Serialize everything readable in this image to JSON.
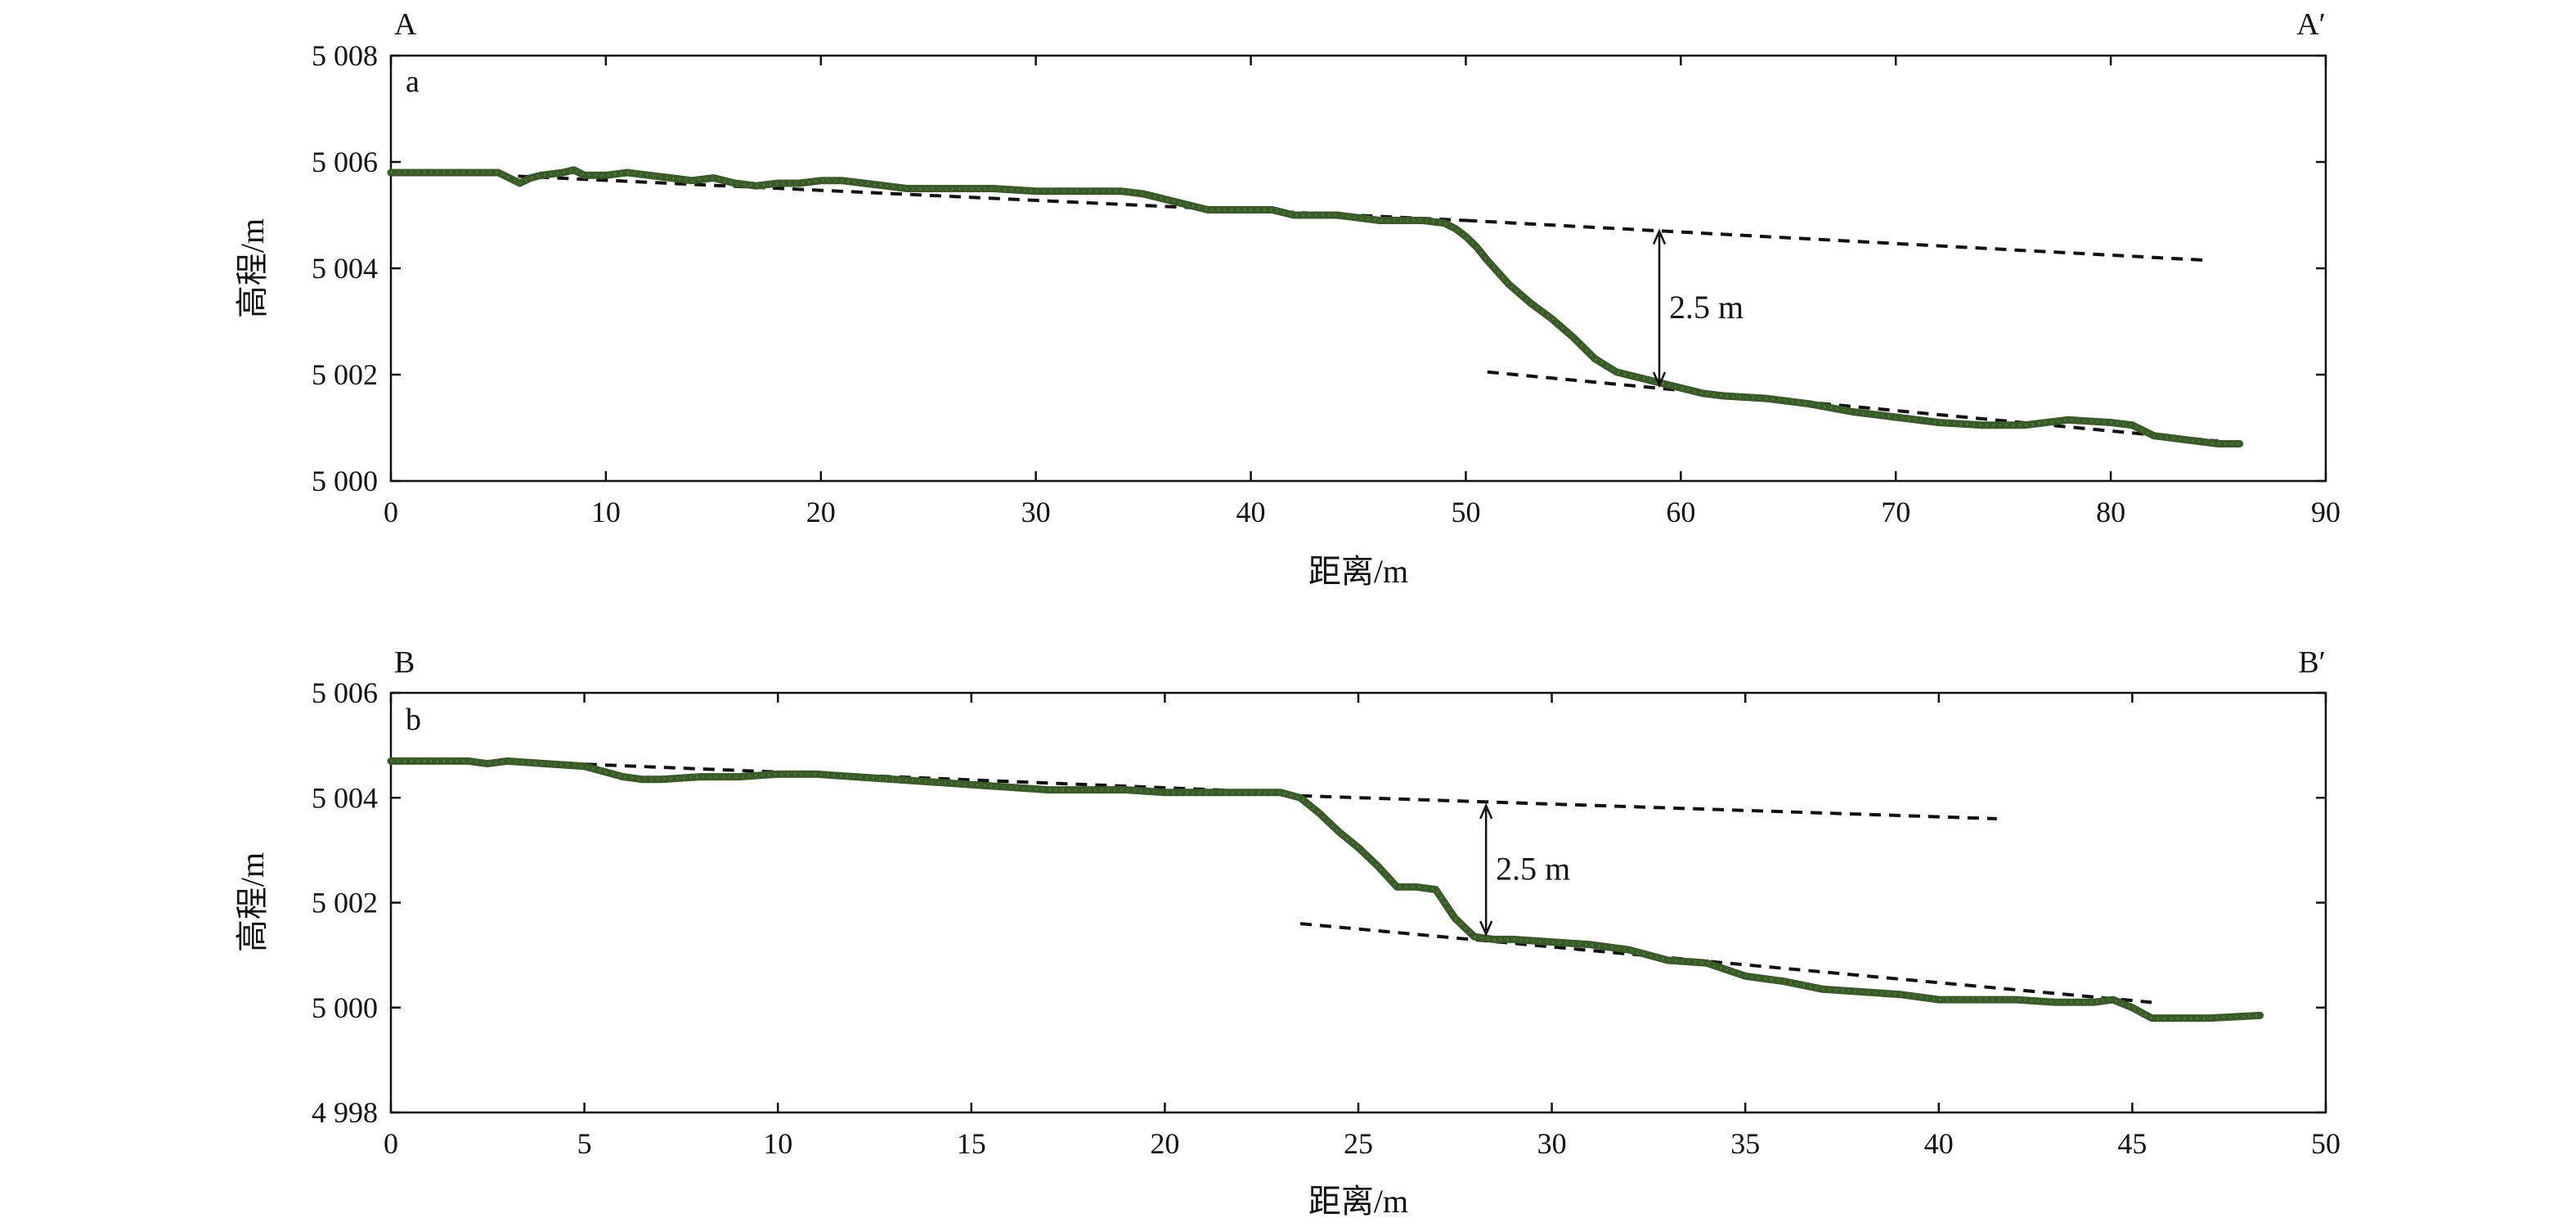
{
  "chart_data": [
    {
      "type": "line",
      "panel": "a",
      "corner_left": "A",
      "corner_right": "A′",
      "xlabel": "距离/m",
      "ylabel": "高程/m",
      "xlim": [
        0,
        90
      ],
      "ylim": [
        5000,
        5008
      ],
      "xticks": [
        0,
        10,
        20,
        30,
        40,
        50,
        60,
        70,
        80,
        90
      ],
      "yticks": [
        5000,
        5002,
        5004,
        5006,
        5008
      ],
      "ytick_labels": [
        "5 000",
        "5 002",
        "5 004",
        "5 006",
        "5 008"
      ],
      "series": [
        {
          "color": "#3a5a2a",
          "x": [
            0,
            2,
            4,
            5,
            5.5,
            6,
            6.5,
            7,
            8,
            8.5,
            9,
            10,
            11,
            12,
            13,
            14,
            15,
            16,
            17,
            18,
            19,
            20,
            21,
            22,
            23,
            24,
            25,
            26,
            28,
            30,
            32,
            34,
            35,
            36,
            37,
            38,
            40,
            41,
            42,
            44,
            46,
            48,
            49,
            49.5,
            50,
            50.5,
            51,
            52,
            53,
            54,
            55,
            56,
            57,
            58,
            59,
            60,
            61,
            62,
            64,
            66,
            68,
            70,
            72,
            74,
            76,
            77,
            78,
            80,
            81,
            82,
            84,
            85,
            86
          ],
          "y": [
            5005.8,
            5005.8,
            5005.8,
            5005.8,
            5005.7,
            5005.6,
            5005.7,
            5005.75,
            5005.8,
            5005.85,
            5005.75,
            5005.75,
            5005.8,
            5005.75,
            5005.7,
            5005.65,
            5005.7,
            5005.6,
            5005.55,
            5005.6,
            5005.6,
            5005.65,
            5005.65,
            5005.6,
            5005.55,
            5005.5,
            5005.5,
            5005.5,
            5005.5,
            5005.45,
            5005.45,
            5005.45,
            5005.4,
            5005.3,
            5005.2,
            5005.1,
            5005.1,
            5005.1,
            5005.0,
            5005.0,
            5004.9,
            5004.9,
            5004.85,
            5004.75,
            5004.6,
            5004.4,
            5004.15,
            5003.7,
            5003.35,
            5003.05,
            5002.7,
            5002.3,
            5002.05,
            5001.95,
            5001.85,
            5001.75,
            5001.65,
            5001.6,
            5001.55,
            5001.45,
            5001.3,
            5001.2,
            5001.1,
            5001.05,
            5001.05,
            5001.1,
            5001.15,
            5001.1,
            5001.05,
            5000.85,
            5000.75,
            5000.7,
            5000.7
          ]
        }
      ],
      "trend_lines": [
        {
          "x": [
            5,
            50
          ],
          "y": [
            5005.75,
            5004.9
          ]
        },
        {
          "x": [
            50,
            84.5
          ],
          "y": [
            5004.9,
            5004.15
          ]
        },
        {
          "x": [
            51,
            85
          ],
          "y": [
            5002.05,
            5000.75
          ]
        }
      ],
      "annotation": {
        "text": "2.5 m",
        "x": 59,
        "y_top": 5004.7,
        "y_bottom": 5001.8
      }
    },
    {
      "type": "line",
      "panel": "b",
      "corner_left": "B",
      "corner_right": "B′",
      "xlabel": "距离/m",
      "ylabel": "高程/m",
      "xlim": [
        0,
        50
      ],
      "ylim": [
        4998,
        5006
      ],
      "xticks": [
        0,
        5,
        10,
        15,
        20,
        25,
        30,
        35,
        40,
        45,
        50
      ],
      "yticks": [
        4998,
        5000,
        5002,
        5004,
        5006
      ],
      "ytick_labels": [
        "4 998",
        "5 000",
        "5 002",
        "5 004",
        "5 006"
      ],
      "series": [
        {
          "color": "#3a5a2a",
          "x": [
            0,
            1,
            2,
            2.5,
            3,
            4,
            5,
            5.5,
            6,
            6.5,
            7,
            8,
            9,
            10,
            11,
            12,
            13,
            14,
            15,
            16,
            17,
            18,
            19,
            20,
            21,
            22,
            23,
            23.5,
            24,
            24.5,
            25,
            25.5,
            26,
            26.5,
            27,
            27.5,
            28,
            28.5,
            29,
            30,
            31,
            32,
            33,
            34,
            35,
            36,
            37,
            38,
            39,
            40,
            41,
            42,
            43,
            44,
            44.5,
            45,
            45.5,
            46,
            47,
            48.3
          ],
          "y": [
            5004.7,
            5004.7,
            5004.7,
            5004.65,
            5004.7,
            5004.65,
            5004.6,
            5004.5,
            5004.4,
            5004.35,
            5004.35,
            5004.4,
            5004.4,
            5004.45,
            5004.45,
            5004.4,
            5004.35,
            5004.3,
            5004.25,
            5004.2,
            5004.15,
            5004.15,
            5004.15,
            5004.1,
            5004.1,
            5004.1,
            5004.1,
            5004.0,
            5003.7,
            5003.35,
            5003.05,
            5002.7,
            5002.3,
            5002.3,
            5002.25,
            5001.7,
            5001.35,
            5001.3,
            5001.3,
            5001.25,
            5001.2,
            5001.1,
            5000.9,
            5000.85,
            5000.6,
            5000.5,
            5000.35,
            5000.3,
            5000.25,
            5000.15,
            5000.15,
            5000.15,
            5000.1,
            5000.1,
            5000.15,
            5000.0,
            4999.8,
            4999.8,
            4999.8,
            4999.85
          ]
        }
      ],
      "trend_lines": [
        {
          "x": [
            3,
            23
          ],
          "y": [
            5004.7,
            5004.1
          ]
        },
        {
          "x": [
            23,
            41.5
          ],
          "y": [
            5004.05,
            5003.6
          ]
        },
        {
          "x": [
            23.5,
            45.5
          ],
          "y": [
            5001.6,
            5000.1
          ]
        }
      ],
      "annotation": {
        "text": "2.5 m",
        "x": 28.3,
        "y_top": 5003.85,
        "y_bottom": 5001.4
      }
    }
  ]
}
